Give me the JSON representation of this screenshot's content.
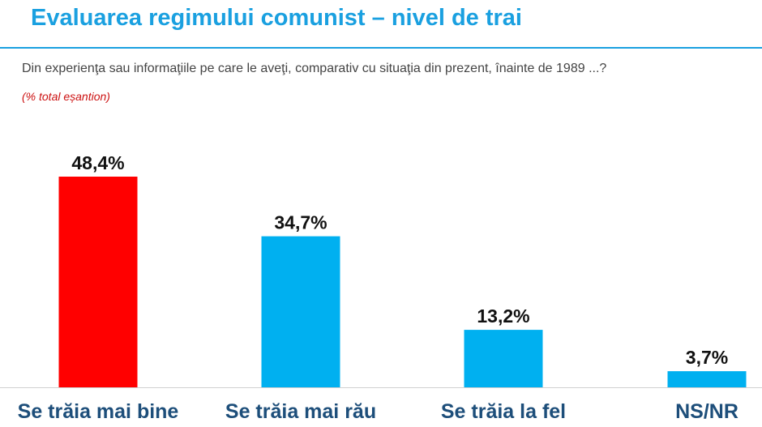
{
  "header": {
    "title": "Evaluarea regimului comunist – nivel de trai",
    "question": "Din experienţa sau informaţiile pe care le aveţi, comparativ cu situaţia din prezent, înainte de 1989 ...?",
    "note": "(% total eșantion)"
  },
  "colors": {
    "title": "#1aa0e0",
    "highlight_bar": "#ff0000",
    "bar": "#00b0f0",
    "category_text": "#1d4e7a",
    "note": "#cc1111"
  },
  "chart_data": {
    "type": "bar",
    "categories": [
      "Se trăia mai bine",
      "Se trăia mai rău",
      "Se trăia la fel",
      "NS/NR"
    ],
    "values": [
      48.4,
      34.7,
      13.2,
      3.7
    ],
    "value_labels": [
      "48,4%",
      "34,7%",
      "13,2%",
      "3,7%"
    ],
    "highlight_index": 0,
    "title": "",
    "xlabel": "",
    "ylabel": "",
    "ylim": [
      0,
      48.4
    ],
    "grid": false,
    "legend": "none"
  }
}
